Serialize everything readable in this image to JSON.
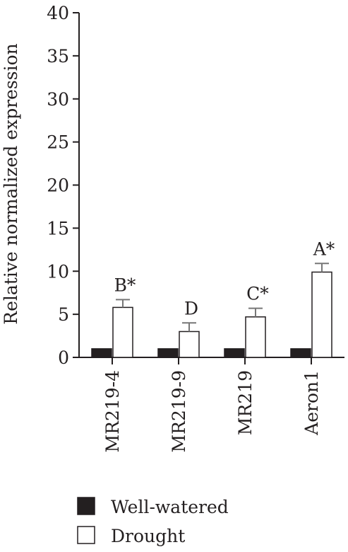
{
  "chart_data": {
    "type": "bar",
    "title": "",
    "xlabel": "",
    "ylabel": "Relative normalized expression",
    "ylim": [
      0,
      40
    ],
    "yticks": [
      0,
      5,
      10,
      15,
      20,
      25,
      30,
      35,
      40
    ],
    "categories": [
      "MR219-4",
      "MR219-9",
      "MR219",
      "Aeron1"
    ],
    "series": [
      {
        "name": "Well-watered",
        "color": "#231f20",
        "values": [
          1.0,
          1.0,
          1.0,
          1.0
        ],
        "errors": [
          0,
          0,
          0,
          0
        ]
      },
      {
        "name": "Drought",
        "color": "#ffffff",
        "values": [
          5.8,
          3.0,
          4.7,
          9.9
        ],
        "errors": [
          0.9,
          1.0,
          1.0,
          1.0
        ]
      }
    ],
    "annotations": [
      "B*",
      "D",
      "C*",
      "A*"
    ],
    "legend_position": "bottom-left",
    "grid": false
  }
}
